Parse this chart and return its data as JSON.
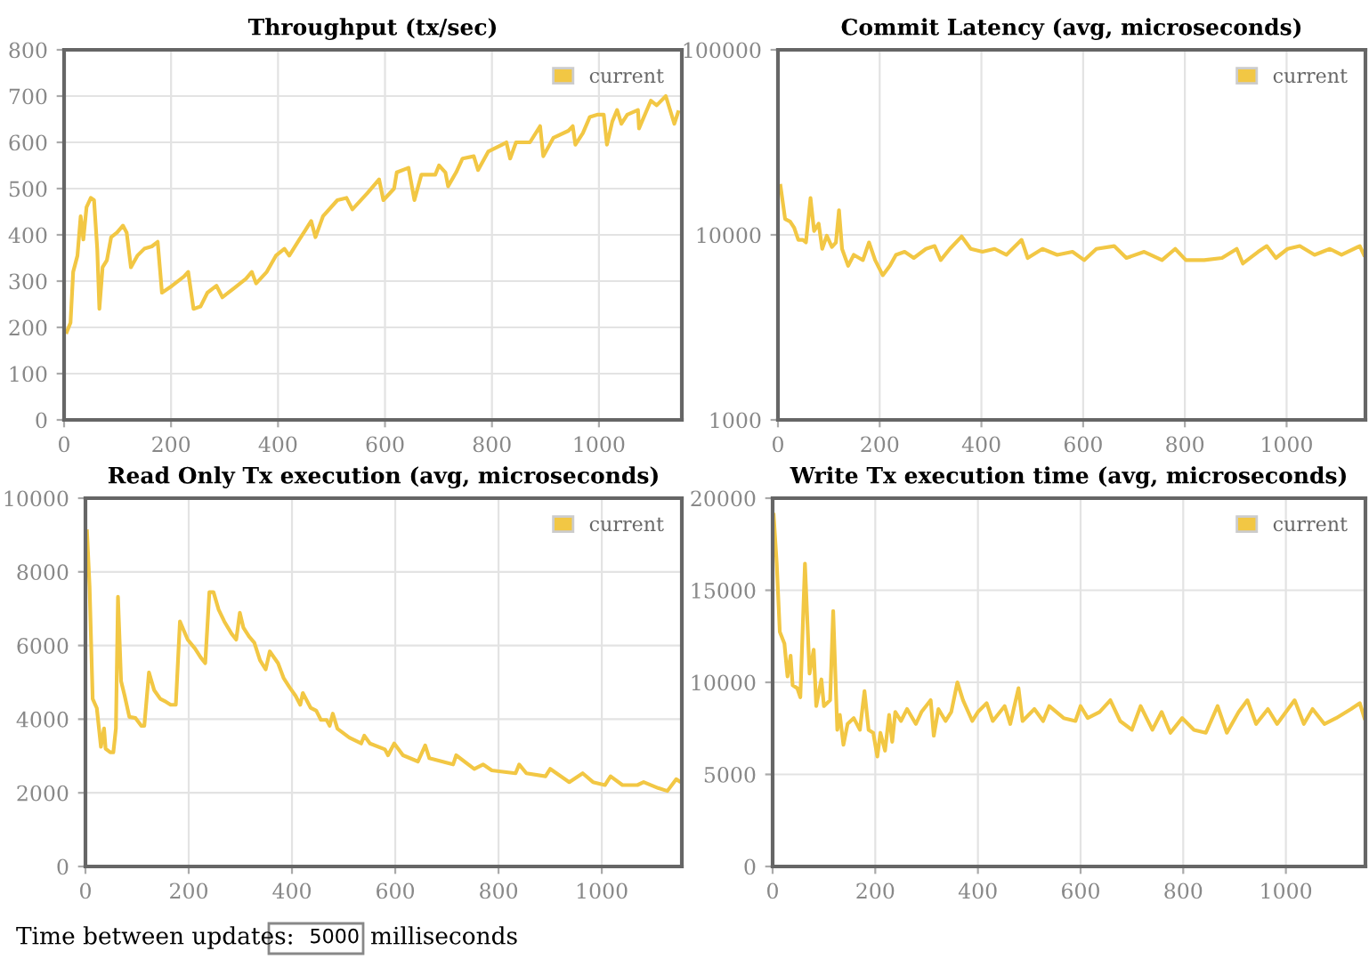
{
  "chart_data": [
    {
      "type": "line",
      "title": "Throughput (tx/sec)",
      "xlim": [
        0,
        1155
      ],
      "ylim": [
        0,
        800
      ],
      "xticks": [
        0,
        200,
        400,
        600,
        800,
        1000
      ],
      "yticks": [
        0,
        100,
        200,
        300,
        400,
        500,
        600,
        700,
        800
      ],
      "grid": true,
      "legend": "top right",
      "series": [
        {
          "name": "current",
          "color": "#f2c744",
          "x": [
            5,
            12,
            17,
            25,
            31,
            36,
            42,
            50,
            56,
            62,
            66,
            72,
            80,
            88,
            99,
            110,
            117,
            125,
            137,
            150,
            164,
            175,
            183,
            202,
            224,
            232,
            242,
            255,
            268,
            285,
            296,
            318,
            340,
            351,
            359,
            379,
            396,
            412,
            421,
            440,
            451,
            462,
            470,
            484,
            511,
            528,
            539,
            567,
            589,
            597,
            617,
            622,
            644,
            655,
            668,
            694,
            701,
            713,
            718,
            733,
            745,
            766,
            774,
            793,
            819,
            827,
            834,
            845,
            871,
            890,
            896,
            915,
            943,
            951,
            956,
            970,
            983,
            998,
            1009,
            1015,
            1025,
            1034,
            1042,
            1053,
            1073,
            1075,
            1097,
            1108,
            1125,
            1141,
            1148
          ],
          "values": [
            190,
            210,
            320,
            355,
            440,
            390,
            460,
            480,
            475,
            370,
            240,
            330,
            345,
            395,
            405,
            420,
            405,
            330,
            355,
            370,
            375,
            385,
            275,
            290,
            310,
            320,
            240,
            245,
            275,
            290,
            265,
            285,
            305,
            320,
            295,
            320,
            355,
            370,
            355,
            390,
            410,
            430,
            395,
            440,
            475,
            480,
            455,
            490,
            520,
            475,
            500,
            535,
            545,
            475,
            530,
            530,
            550,
            535,
            505,
            535,
            565,
            570,
            540,
            580,
            595,
            600,
            565,
            600,
            600,
            635,
            570,
            610,
            625,
            635,
            595,
            620,
            655,
            660,
            660,
            595,
            645,
            670,
            640,
            660,
            670,
            630,
            690,
            680,
            700,
            640,
            665
          ]
        }
      ]
    },
    {
      "type": "line",
      "title": "Commit Latency (avg, microseconds)",
      "log": "y",
      "xlim": [
        0,
        1155
      ],
      "ylim": [
        1000,
        100000
      ],
      "xticks": [
        0,
        200,
        400,
        600,
        800,
        1000
      ],
      "yticks": [
        1000,
        10000,
        100000
      ],
      "grid": true,
      "legend": "top right",
      "series": [
        {
          "name": "current",
          "color": "#f2c744",
          "x": [
            5,
            14,
            24,
            32,
            40,
            49,
            55,
            64,
            71,
            80,
            87,
            96,
            106,
            114,
            120,
            126,
            138,
            149,
            167,
            179,
            191,
            206,
            220,
            232,
            249,
            267,
            291,
            308,
            320,
            338,
            361,
            379,
            402,
            426,
            449,
            479,
            491,
            520,
            549,
            579,
            602,
            626,
            661,
            685,
            720,
            755,
            781,
            802,
            838,
            873,
            902,
            914,
            944,
            961,
            979,
            1002,
            1026,
            1055,
            1085,
            1108,
            1144,
            1152
          ],
          "values": [
            18400,
            12200,
            11800,
            10900,
            9400,
            9400,
            9100,
            15800,
            10500,
            11500,
            8400,
            9900,
            8600,
            9100,
            13600,
            8400,
            6800,
            7800,
            7300,
            9100,
            7300,
            6050,
            6800,
            7800,
            8100,
            7500,
            8400,
            8700,
            7300,
            8400,
            9800,
            8400,
            8100,
            8400,
            7800,
            9400,
            7500,
            8400,
            7800,
            8100,
            7300,
            8400,
            8700,
            7500,
            8100,
            7300,
            8400,
            7300,
            7300,
            7500,
            8400,
            7000,
            8100,
            8700,
            7500,
            8400,
            8700,
            7800,
            8400,
            7800,
            8700,
            7800
          ]
        }
      ]
    },
    {
      "type": "line",
      "title": "Read Only Tx execution (avg, microseconds)",
      "xlim": [
        0,
        1155
      ],
      "ylim": [
        0,
        10000
      ],
      "xticks": [
        0,
        200,
        400,
        600,
        800,
        1000
      ],
      "yticks": [
        0,
        2000,
        4000,
        6000,
        8000,
        10000
      ],
      "grid": true,
      "legend": "top right",
      "series": [
        {
          "name": "current",
          "color": "#f2c744",
          "x": [
            3,
            8,
            14,
            22,
            30,
            36,
            39,
            48,
            54,
            59,
            63,
            69,
            76,
            85,
            97,
            108,
            114,
            123,
            133,
            145,
            156,
            165,
            175,
            183,
            198,
            212,
            223,
            232,
            240,
            248,
            258,
            269,
            283,
            292,
            299,
            306,
            317,
            327,
            338,
            349,
            357,
            373,
            384,
            395,
            407,
            416,
            421,
            436,
            447,
            456,
            467,
            473,
            479,
            488,
            511,
            534,
            540,
            551,
            580,
            586,
            598,
            615,
            644,
            658,
            666,
            712,
            718,
            753,
            770,
            787,
            833,
            840,
            854,
            891,
            900,
            937,
            963,
            983,
            1006,
            1017,
            1040,
            1069,
            1081,
            1109,
            1127,
            1144,
            1153
          ],
          "values": [
            9100,
            7600,
            4550,
            4300,
            3250,
            3750,
            3200,
            3100,
            3100,
            3750,
            7320,
            5030,
            4630,
            4060,
            4030,
            3820,
            3820,
            5270,
            4790,
            4550,
            4470,
            4390,
            4390,
            6650,
            6160,
            5920,
            5680,
            5520,
            7450,
            7450,
            6970,
            6650,
            6320,
            6160,
            6890,
            6480,
            6240,
            6080,
            5600,
            5350,
            5840,
            5520,
            5110,
            4870,
            4630,
            4390,
            4710,
            4310,
            4230,
            3980,
            3980,
            3820,
            4150,
            3740,
            3500,
            3340,
            3550,
            3340,
            3180,
            3020,
            3340,
            3020,
            2850,
            3290,
            2940,
            2770,
            3020,
            2650,
            2770,
            2610,
            2530,
            2770,
            2530,
            2450,
            2650,
            2290,
            2530,
            2290,
            2210,
            2450,
            2210,
            2210,
            2290,
            2130,
            2050,
            2370,
            2290
          ]
        }
      ]
    },
    {
      "type": "line",
      "title": "Write Tx execution time (avg, microseconds)",
      "xlim": [
        0,
        1155
      ],
      "ylim": [
        0,
        20000
      ],
      "xticks": [
        0,
        200,
        400,
        600,
        800,
        1000
      ],
      "yticks": [
        0,
        5000,
        10000,
        15000,
        20000
      ],
      "grid": true,
      "legend": "top right",
      "series": [
        {
          "name": "current",
          "color": "#f2c744",
          "x": [
            2,
            8,
            14,
            23,
            29,
            35,
            39,
            48,
            54,
            63,
            72,
            80,
            85,
            95,
            100,
            112,
            118,
            126,
            131,
            138,
            146,
            158,
            170,
            179,
            187,
            196,
            204,
            210,
            219,
            227,
            233,
            239,
            250,
            262,
            279,
            290,
            308,
            314,
            323,
            337,
            348,
            360,
            371,
            389,
            400,
            417,
            429,
            452,
            463,
            479,
            487,
            510,
            527,
            539,
            567,
            590,
            600,
            614,
            637,
            658,
            677,
            700,
            717,
            740,
            758,
            775,
            798,
            821,
            844,
            867,
            885,
            908,
            925,
            942,
            965,
            983,
            1017,
            1035,
            1052,
            1075,
            1098,
            1127,
            1144,
            1153
          ],
          "values": [
            19100,
            16450,
            12740,
            12100,
            10320,
            11450,
            9840,
            9680,
            9190,
            16450,
            10480,
            11770,
            8710,
            10160,
            8710,
            9030,
            13870,
            7420,
            8230,
            6610,
            7740,
            8060,
            7420,
            9520,
            7420,
            7260,
            5970,
            7260,
            6290,
            8230,
            6770,
            8390,
            7900,
            8550,
            7740,
            8390,
            9030,
            7100,
            8550,
            7900,
            8390,
            10000,
            9030,
            7900,
            8390,
            8870,
            7900,
            8710,
            7740,
            9680,
            7900,
            8550,
            7900,
            8710,
            8060,
            7900,
            8710,
            8060,
            8390,
            9030,
            7900,
            7420,
            8710,
            7420,
            8390,
            7260,
            8060,
            7420,
            7260,
            8710,
            7260,
            8390,
            9030,
            7740,
            8550,
            7740,
            9030,
            7740,
            8550,
            7740,
            8060,
            8550,
            8870,
            8060
          ]
        }
      ]
    },
    {
      "type": "other",
      "annotations": [
        "Time between updates:",
        "5000",
        "milliseconds"
      ]
    }
  ]
}
